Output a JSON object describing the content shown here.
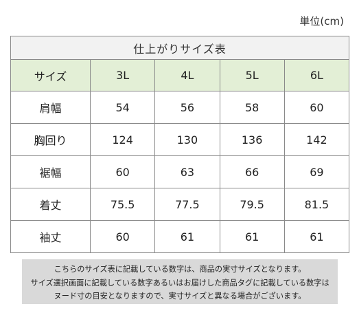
{
  "unit_label": "単位(cm)",
  "table": {
    "title": "仕上がりサイズ表",
    "header": {
      "label": "サイズ",
      "sizes": [
        "3L",
        "4L",
        "5L",
        "6L"
      ]
    },
    "rows": [
      {
        "label": "肩幅",
        "values": [
          "54",
          "56",
          "58",
          "60"
        ]
      },
      {
        "label": "胸回り",
        "values": [
          "124",
          "130",
          "136",
          "142"
        ]
      },
      {
        "label": "裾幅",
        "values": [
          "60",
          "63",
          "66",
          "69"
        ]
      },
      {
        "label": "着丈",
        "values": [
          "75.5",
          "77.5",
          "79.5",
          "81.5"
        ]
      },
      {
        "label": "袖丈",
        "values": [
          "60",
          "61",
          "61",
          "61"
        ]
      }
    ]
  },
  "note": {
    "lines": [
      "こちらのサイズ表に記載している数字は、商品の実寸サイズとなります。",
      "サイズ選択画面に記載している数字あるいはお届けした商品タグに記載している数字は",
      "ヌード寸の目安となりますので、実寸サイズと異なる場合がございます。"
    ]
  }
}
